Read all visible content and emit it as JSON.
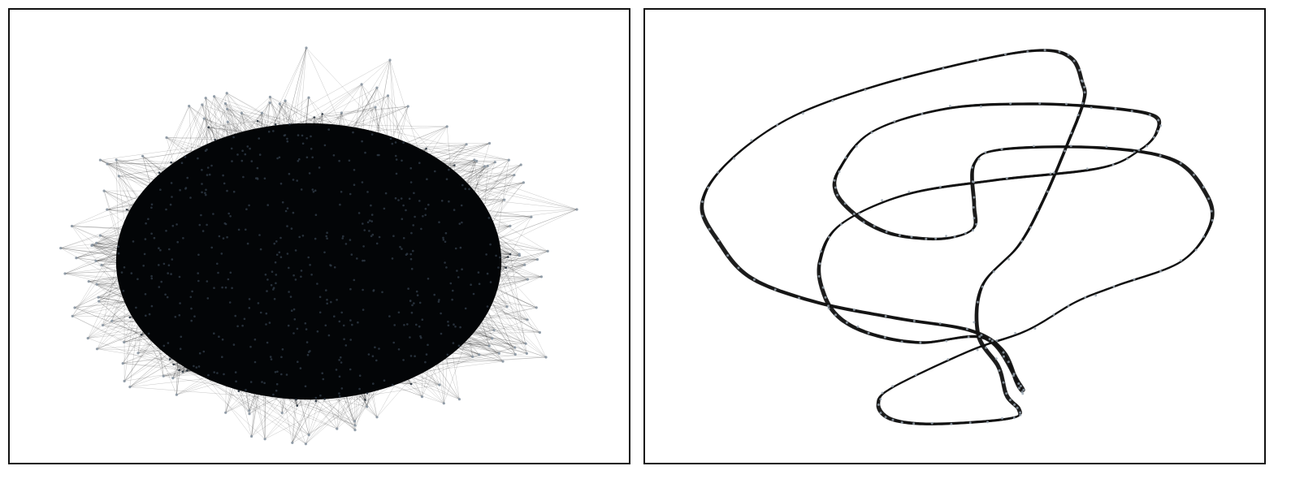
{
  "panels": [
    {
      "id": "left",
      "kind": "dense-network",
      "node_color": "#2b3540",
      "edge_color": "#000000",
      "background": "#ffffff"
    },
    {
      "id": "right",
      "kind": "looped-curve-network",
      "node_color": "#9aa6b2",
      "edge_color": "#111111",
      "background": "#ffffff"
    }
  ],
  "frame_color": "#111111"
}
